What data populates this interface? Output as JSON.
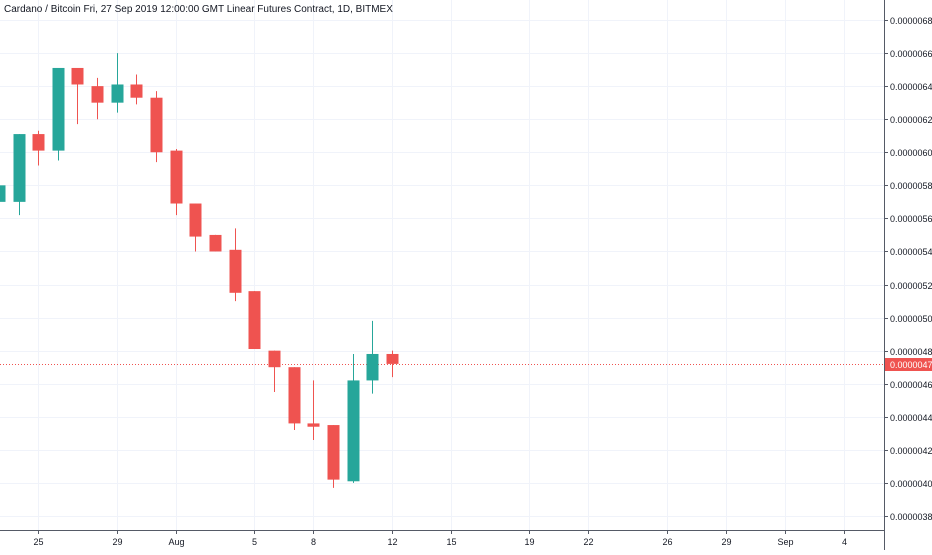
{
  "header": {
    "title": "Cardano / Bitcoin Fri, 27 Sep 2019 12:00:00 GMT Linear Futures Contract, 1D, BITMEX"
  },
  "colors": {
    "up": "#26a69a",
    "down": "#ef5350",
    "grid": "#f0f3fa",
    "axis_text": "#131722",
    "price_line": "#ef5350",
    "last_price_bg": "#ef5350"
  },
  "chart_data": {
    "type": "candlestick",
    "title": "Cardano / Bitcoin Fri, 27 Sep 2019 12:00:00 GMT Linear Futures Contract, 1D, BITMEX",
    "interval": "1D",
    "ylim": [
      3.71e-06,
      6.9e-06
    ],
    "y_ticks": [
      "0.00000380",
      "0.00000400",
      "0.00000420",
      "0.00000440",
      "0.00000460",
      "0.00000480",
      "0.00000500",
      "0.00000520",
      "0.00000540",
      "0.00000560",
      "0.00000580",
      "0.00000600",
      "0.00000620",
      "0.00000640",
      "0.00000660",
      "0.00000680"
    ],
    "x_ticks": [
      {
        "label": "25",
        "day": 25
      },
      {
        "label": "29",
        "day": 29
      },
      {
        "label": "Aug",
        "day": 32
      },
      {
        "label": "5",
        "day": 36
      },
      {
        "label": "8",
        "day": 39
      },
      {
        "label": "12",
        "day": 43
      },
      {
        "label": "15",
        "day": 46
      },
      {
        "label": "19",
        "day": 50
      },
      {
        "label": "22",
        "day": 53
      },
      {
        "label": "26",
        "day": 57
      },
      {
        "label": "29",
        "day": 60
      },
      {
        "label": "Sep",
        "day": 63
      },
      {
        "label": "4",
        "day": 66
      }
    ],
    "grid": true,
    "last_price": "0.00000472",
    "last_price_value": 4.72e-06,
    "candles": [
      {
        "day": 23,
        "open": 5.7e-06,
        "high": 5.8e-06,
        "low": 5.6e-06,
        "close": 5.8e-06
      },
      {
        "day": 24,
        "open": 5.7e-06,
        "high": 6.11e-06,
        "low": 5.62e-06,
        "close": 6.11e-06
      },
      {
        "day": 25,
        "open": 6.11e-06,
        "high": 6.13e-06,
        "low": 5.92e-06,
        "close": 6.01e-06
      },
      {
        "day": 26,
        "open": 6.01e-06,
        "high": 6.51e-06,
        "low": 5.95e-06,
        "close": 6.51e-06
      },
      {
        "day": 27,
        "open": 6.51e-06,
        "high": 6.51e-06,
        "low": 6.17e-06,
        "close": 6.41e-06
      },
      {
        "day": 28,
        "open": 6.4e-06,
        "high": 6.45e-06,
        "low": 6.2e-06,
        "close": 6.3e-06
      },
      {
        "day": 29,
        "open": 6.3e-06,
        "high": 6.6e-06,
        "low": 6.24e-06,
        "close": 6.41e-06
      },
      {
        "day": 30,
        "open": 6.41e-06,
        "high": 6.47e-06,
        "low": 6.29e-06,
        "close": 6.33e-06
      },
      {
        "day": 31,
        "open": 6.33e-06,
        "high": 6.37e-06,
        "low": 5.94e-06,
        "close": 6e-06
      },
      {
        "day": 32,
        "open": 6.01e-06,
        "high": 6.02e-06,
        "low": 5.62e-06,
        "close": 5.69e-06
      },
      {
        "day": 33,
        "open": 5.69e-06,
        "high": 5.69e-06,
        "low": 5.4e-06,
        "close": 5.49e-06
      },
      {
        "day": 34,
        "open": 5.5e-06,
        "high": 5.5e-06,
        "low": 5.4e-06,
        "close": 5.4e-06
      },
      {
        "day": 35,
        "open": 5.41e-06,
        "high": 5.54e-06,
        "low": 5.1e-06,
        "close": 5.15e-06
      },
      {
        "day": 36,
        "open": 5.16e-06,
        "high": 5.16e-06,
        "low": 4.81e-06,
        "close": 4.81e-06
      },
      {
        "day": 37,
        "open": 4.8e-06,
        "high": 4.8e-06,
        "low": 4.55e-06,
        "close": 4.7e-06
      },
      {
        "day": 38,
        "open": 4.7e-06,
        "high": 4.7e-06,
        "low": 4.32e-06,
        "close": 4.36e-06
      },
      {
        "day": 39,
        "open": 4.36e-06,
        "high": 4.62e-06,
        "low": 4.26e-06,
        "close": 4.34e-06
      },
      {
        "day": 40,
        "open": 4.35e-06,
        "high": 4.35e-06,
        "low": 3.97e-06,
        "close": 4.02e-06
      },
      {
        "day": 41,
        "open": 4.01e-06,
        "high": 4.78e-06,
        "low": 4e-06,
        "close": 4.62e-06
      },
      {
        "day": 42,
        "open": 4.62e-06,
        "high": 4.98e-06,
        "low": 4.54e-06,
        "close": 4.78e-06
      },
      {
        "day": 43,
        "open": 4.78e-06,
        "high": 4.8e-06,
        "low": 4.64e-06,
        "close": 4.72e-06
      }
    ]
  }
}
